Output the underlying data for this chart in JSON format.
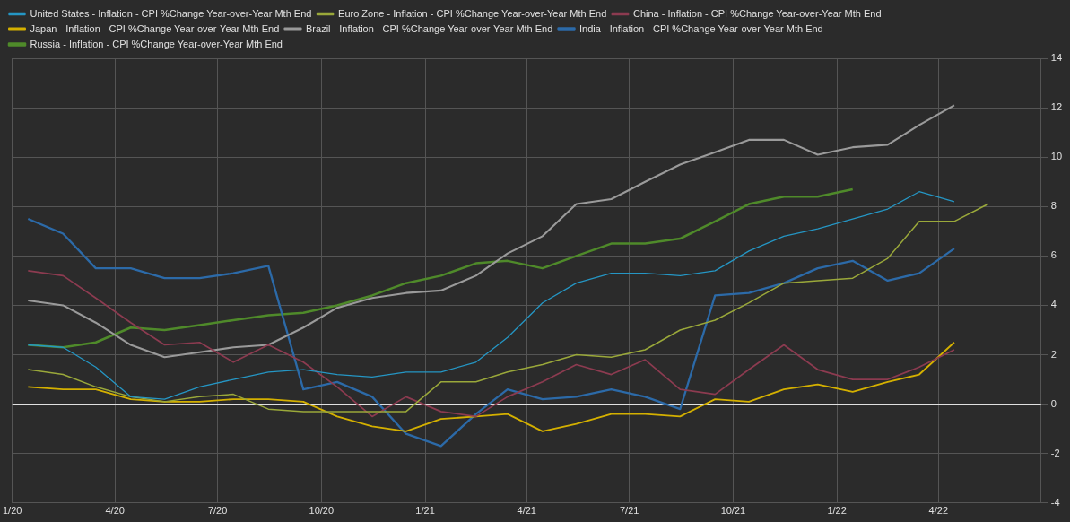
{
  "chart_data": {
    "type": "line",
    "x": [
      "2020-01-15",
      "2020-02-15",
      "2020-03-15",
      "2020-04-15",
      "2020-05-15",
      "2020-06-15",
      "2020-07-15",
      "2020-08-15",
      "2020-09-15",
      "2020-10-15",
      "2020-11-15",
      "2020-12-15",
      "2021-01-15",
      "2021-02-15",
      "2021-03-15",
      "2021-04-15",
      "2021-05-15",
      "2021-06-15",
      "2021-07-15",
      "2021-08-15",
      "2021-09-15",
      "2021-10-15",
      "2021-11-15",
      "2021-12-15",
      "2022-01-15",
      "2022-02-15",
      "2022-03-15",
      "2022-04-15",
      "2022-05-15"
    ],
    "series": [
      {
        "name": "United States - Inflation - CPI %Change Year-over-Year Mth End",
        "color": "#2596c4",
        "values": [
          2.4,
          2.3,
          1.5,
          0.3,
          0.2,
          0.7,
          1.0,
          1.3,
          1.4,
          1.2,
          1.1,
          1.3,
          1.3,
          1.7,
          2.7,
          4.1,
          4.9,
          5.3,
          5.3,
          5.2,
          5.4,
          6.2,
          6.8,
          7.1,
          7.5,
          7.9,
          8.6,
          8.2,
          null
        ]
      },
      {
        "name": "Euro Zone - Inflation - CPI %Change Year-over-Year Mth End",
        "color": "#9aa83a",
        "values": [
          1.4,
          1.2,
          0.7,
          0.3,
          0.1,
          0.3,
          0.4,
          -0.2,
          -0.3,
          -0.3,
          -0.3,
          -0.3,
          0.9,
          0.9,
          1.3,
          1.6,
          2.0,
          1.9,
          2.2,
          3.0,
          3.4,
          4.1,
          4.9,
          5.0,
          5.1,
          5.9,
          7.4,
          7.4,
          8.1
        ]
      },
      {
        "name": "China - Inflation - CPI %Change Year-over-Year Mth End",
        "color": "#8c3b50",
        "values": [
          5.4,
          5.2,
          4.3,
          3.3,
          2.4,
          2.5,
          1.7,
          2.4,
          1.7,
          0.7,
          -0.5,
          0.3,
          -0.3,
          -0.5,
          0.3,
          0.9,
          1.6,
          1.2,
          1.8,
          0.6,
          0.4,
          1.4,
          2.4,
          1.4,
          1.0,
          1.0,
          1.5,
          2.2,
          null
        ]
      },
      {
        "name": "Japan - Inflation - CPI %Change Year-over-Year Mth End",
        "color": "#d4b000",
        "values": [
          0.7,
          0.6,
          0.6,
          0.2,
          0.1,
          0.1,
          0.2,
          0.2,
          0.1,
          -0.5,
          -0.9,
          -1.1,
          -0.6,
          -0.5,
          -0.4,
          -1.1,
          -0.8,
          -0.4,
          -0.4,
          -0.5,
          0.2,
          0.1,
          0.6,
          0.8,
          0.5,
          0.9,
          1.2,
          2.5,
          null
        ]
      },
      {
        "name": "Brazil - Inflation - CPI %Change Year-over-Year Mth End",
        "color": "#9a9a9a",
        "values": [
          4.2,
          4.0,
          3.3,
          2.4,
          1.9,
          2.1,
          2.3,
          2.4,
          3.1,
          3.9,
          4.3,
          4.5,
          4.6,
          5.2,
          6.1,
          6.8,
          8.1,
          8.3,
          9.0,
          9.7,
          10.2,
          10.7,
          10.7,
          10.1,
          10.4,
          10.5,
          11.3,
          12.1,
          null
        ]
      },
      {
        "name": "India - Inflation - CPI %Change Year-over-Year Mth End",
        "color": "#2c6aa8",
        "values": [
          7.5,
          6.9,
          5.5,
          5.5,
          5.1,
          5.1,
          5.3,
          5.6,
          0.6,
          0.9,
          0.3,
          -1.2,
          -1.7,
          -0.4,
          0.6,
          0.2,
          0.3,
          0.6,
          0.3,
          -0.2,
          4.4,
          4.5,
          4.9,
          5.5,
          5.8,
          5.0,
          5.3,
          6.3,
          null
        ]
      },
      {
        "name": "Russia - Inflation - CPI %Change Year-over-Year Mth End",
        "color": "#4f8a2a",
        "values": [
          2.4,
          2.3,
          2.5,
          3.1,
          3.0,
          3.2,
          3.4,
          3.6,
          3.7,
          4.0,
          4.4,
          4.9,
          5.2,
          5.7,
          5.8,
          5.5,
          6.0,
          6.5,
          6.5,
          6.7,
          7.4,
          8.1,
          8.4,
          8.4,
          8.7,
          null,
          null,
          null,
          null
        ]
      }
    ],
    "xlim": [
      "2020-01-01",
      "2022-07-01"
    ],
    "xticks": [
      {
        "value": "2020-01-01",
        "label": "1/20"
      },
      {
        "value": "2020-04-01",
        "label": "4/20"
      },
      {
        "value": "2020-07-01",
        "label": "7/20"
      },
      {
        "value": "2020-10-01",
        "label": "10/20"
      },
      {
        "value": "2021-01-01",
        "label": "1/21"
      },
      {
        "value": "2021-04-01",
        "label": "4/21"
      },
      {
        "value": "2021-07-01",
        "label": "7/21"
      },
      {
        "value": "2021-10-01",
        "label": "10/21"
      },
      {
        "value": "2022-01-01",
        "label": "1/22"
      },
      {
        "value": "2022-04-01",
        "label": "4/22"
      }
    ],
    "ylim": [
      -4,
      14
    ],
    "yticks": [
      -4,
      -2,
      0,
      2,
      4,
      6,
      8,
      10,
      12,
      14
    ],
    "ref_lines": [
      {
        "axis": "y",
        "value": 0,
        "color": "#e0e0e0"
      }
    ],
    "grid": true,
    "legend": "top left",
    "marker": "none",
    "line_style": "solid"
  }
}
